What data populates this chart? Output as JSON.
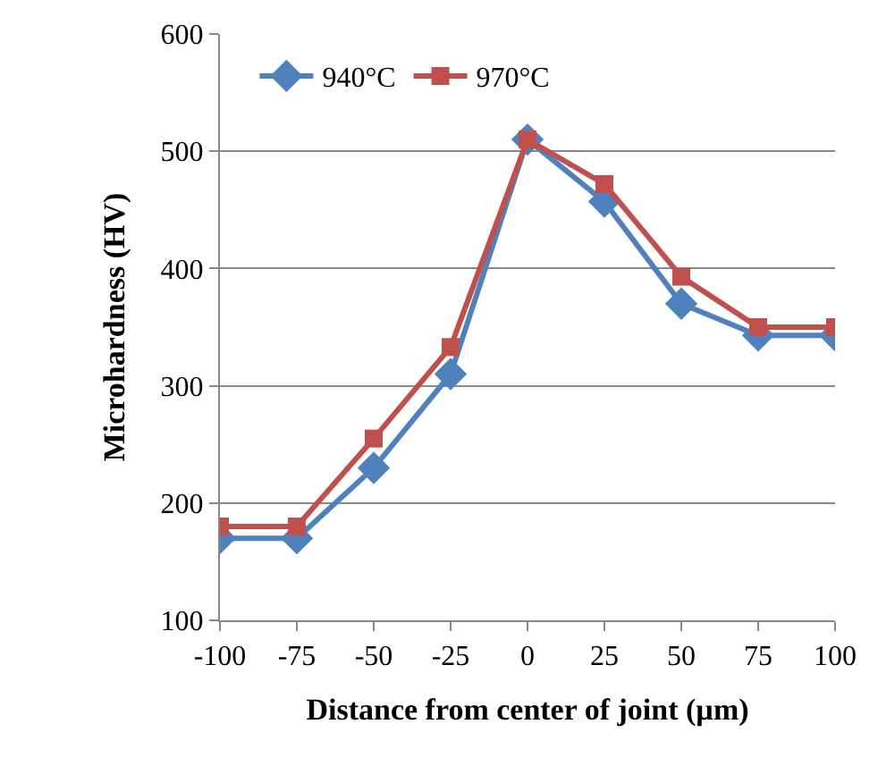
{
  "chart_data": {
    "type": "line",
    "xlabel": "Distance from center of joint (µm)",
    "ylabel": "Microhardness (HV)",
    "x": [
      -100,
      -75,
      -50,
      -25,
      0,
      25,
      50,
      75,
      100
    ],
    "series": [
      {
        "name": "940°C",
        "color": "#4f81bd",
        "marker": "diamond",
        "values": [
          170,
          170,
          230,
          310,
          510,
          457,
          370,
          343,
          343
        ]
      },
      {
        "name": "970°C",
        "color": "#c0504d",
        "marker": "square",
        "values": [
          180,
          180,
          255,
          333,
          510,
          472,
          393,
          350,
          350
        ]
      }
    ],
    "xlim": [
      -100,
      100
    ],
    "xticks": [
      -100,
      -75,
      -50,
      -25,
      0,
      25,
      50,
      75,
      100
    ],
    "ylim": [
      100,
      600
    ],
    "yticks": [
      100,
      200,
      300,
      400,
      500,
      600
    ],
    "grid": "y",
    "legend": "top left",
    "line_style": "solid"
  }
}
